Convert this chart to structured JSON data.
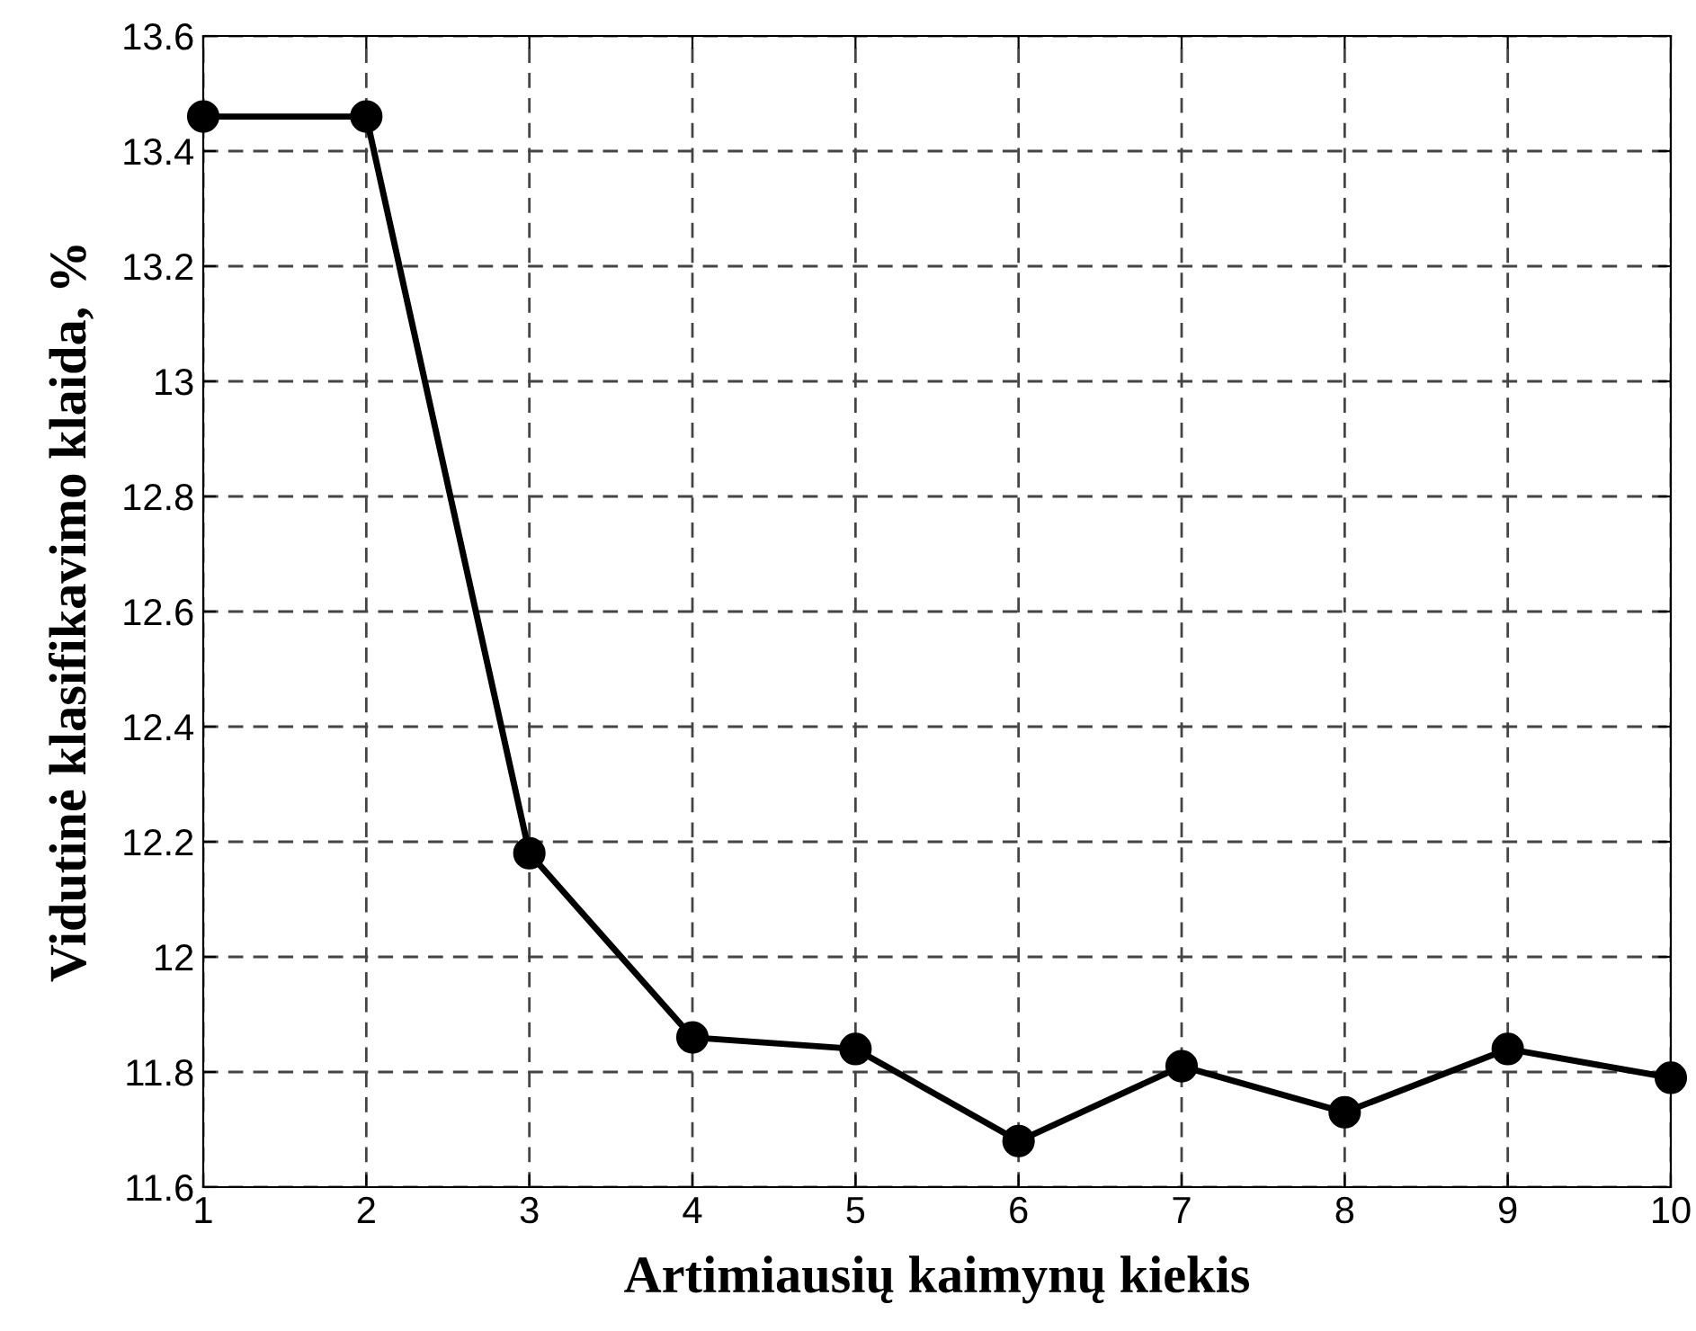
{
  "chart_data": {
    "type": "line",
    "xlabel": "Artimiausių kaimynų kiekis",
    "ylabel": "Vidutinė klasifikavimo klaida, %",
    "x": [
      1,
      2,
      3,
      4,
      5,
      6,
      7,
      8,
      9,
      10
    ],
    "series": [
      {
        "color": "#000000",
        "values": [
          13.46,
          13.46,
          12.18,
          11.86,
          11.84,
          11.68,
          11.81,
          11.73,
          11.84,
          11.79
        ]
      }
    ],
    "xlim": [
      1,
      10
    ],
    "xticks": [
      1,
      2,
      3,
      4,
      5,
      6,
      7,
      8,
      9,
      10
    ],
    "ylim": [
      11.6,
      13.6
    ],
    "yticks": [
      11.6,
      11.8,
      12,
      12.2,
      12.4,
      12.6,
      12.8,
      13,
      13.2,
      13.4,
      13.6
    ],
    "grid": true,
    "marker": "circle",
    "line_style": "solid"
  }
}
